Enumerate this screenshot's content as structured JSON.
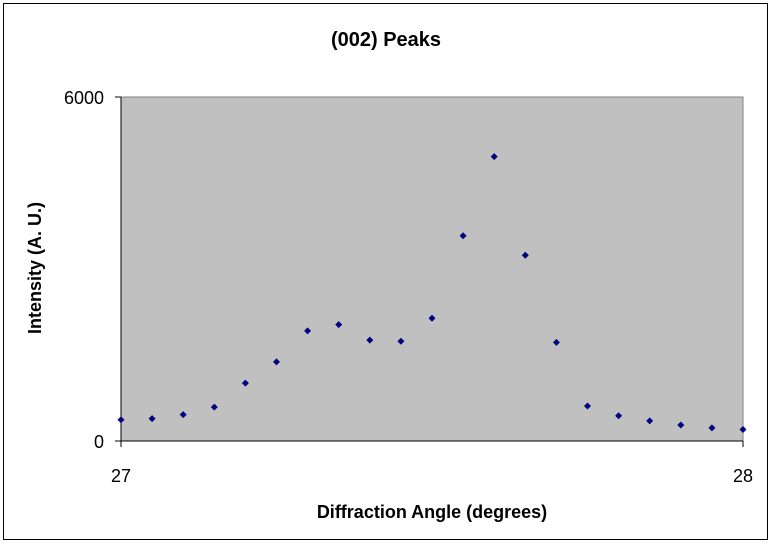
{
  "chart_data": {
    "type": "scatter",
    "title": "(002) Peaks",
    "xlabel": "Diffraction Angle (degrees)",
    "ylabel": "Intensity (A. U.)",
    "xlim": [
      27,
      28
    ],
    "ylim": [
      0,
      6000
    ],
    "x_ticks": [
      "27",
      "28"
    ],
    "y_ticks": [
      "0",
      "6000"
    ],
    "grid": false,
    "legend": "none",
    "plot_background": "#C0C0C0",
    "marker_color": "#000080",
    "marker": "diamond",
    "series": [
      {
        "x": [
          27.0,
          27.05,
          27.1,
          27.15,
          27.2,
          27.25,
          27.3,
          27.35,
          27.4,
          27.45,
          27.5,
          27.55,
          27.6,
          27.65,
          27.7,
          27.75,
          27.8,
          27.85,
          27.9,
          27.95,
          28.0
        ],
        "values": [
          370,
          390,
          460,
          590,
          1010,
          1380,
          1920,
          2030,
          1760,
          1740,
          2140,
          3580,
          4960,
          3240,
          1720,
          610,
          440,
          350,
          280,
          230,
          200
        ]
      }
    ]
  }
}
